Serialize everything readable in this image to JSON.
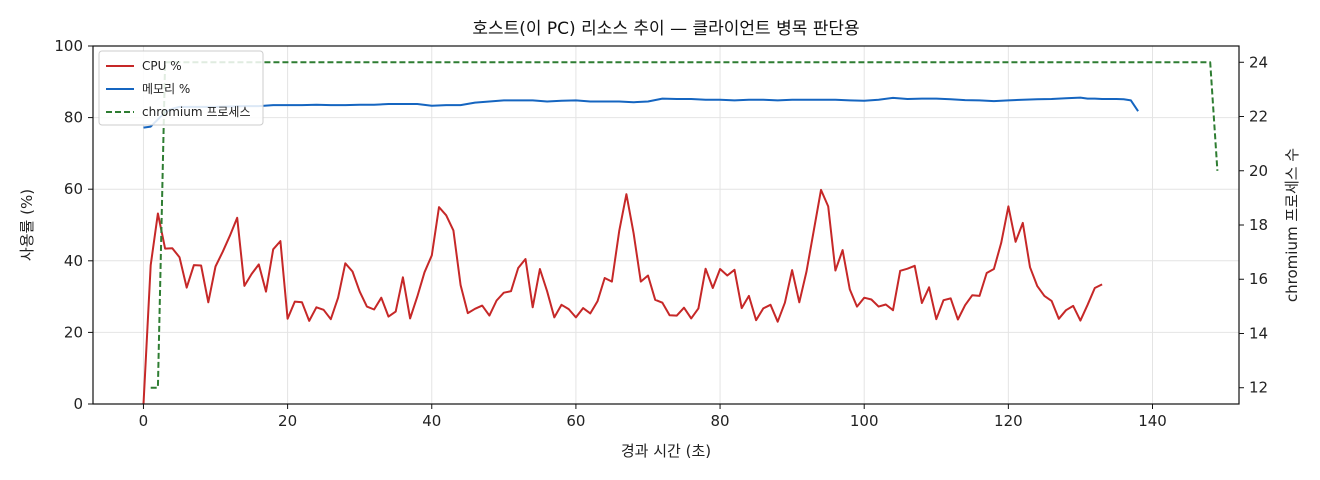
{
  "chart_data": {
    "type": "line",
    "title": "호스트(이 PC) 리소스 추이 — 클라이언트 병목 판단용",
    "xlabel": "경과 시간 (초)",
    "ylabel": "사용률 (%)",
    "y2label": "chromium 프로세스 수",
    "xlim": [
      -7,
      152
    ],
    "ylim": [
      0,
      100
    ],
    "y2lim": [
      11.4,
      24.6
    ],
    "xticks": [
      0,
      20,
      40,
      60,
      80,
      100,
      120,
      140
    ],
    "yticks": [
      0,
      20,
      40,
      60,
      80,
      100
    ],
    "y2ticks": [
      12,
      14,
      16,
      18,
      20,
      22,
      24
    ],
    "grid": true,
    "legend_position": "top-left",
    "series": [
      {
        "name": "CPU %",
        "axis": "left",
        "color": "#c62828",
        "style": "solid",
        "points": [
          [
            0,
            0
          ],
          [
            1,
            38.8
          ],
          [
            2,
            53.2
          ],
          [
            3,
            43.4
          ],
          [
            4,
            43.5
          ],
          [
            5,
            41
          ],
          [
            6,
            32.5
          ],
          [
            7,
            38.8
          ],
          [
            8,
            38.7
          ],
          [
            9,
            28.4
          ],
          [
            10,
            38.4
          ],
          [
            11,
            42.5
          ],
          [
            12,
            47
          ],
          [
            13,
            52
          ],
          [
            14,
            33
          ],
          [
            15,
            36.3
          ],
          [
            16,
            39
          ],
          [
            17,
            31.4
          ],
          [
            18,
            43.2
          ],
          [
            19,
            45.5
          ],
          [
            20,
            23.8
          ],
          [
            21,
            28.6
          ],
          [
            22,
            28.4
          ],
          [
            23,
            23.2
          ],
          [
            24,
            27
          ],
          [
            25,
            26.3
          ],
          [
            26,
            23.7
          ],
          [
            27,
            29.7
          ],
          [
            28,
            39.3
          ],
          [
            29,
            37
          ],
          [
            30,
            31.4
          ],
          [
            31,
            27.2
          ],
          [
            32,
            26.4
          ],
          [
            33,
            29.7
          ],
          [
            34,
            24.4
          ],
          [
            35,
            25.8
          ],
          [
            36,
            35.4
          ],
          [
            37,
            23.9
          ],
          [
            38,
            30
          ],
          [
            39,
            36.8
          ],
          [
            40,
            41.5
          ],
          [
            41,
            55
          ],
          [
            42,
            52.7
          ],
          [
            43,
            48.5
          ],
          [
            44,
            33.2
          ],
          [
            45,
            25.4
          ],
          [
            46,
            26.6
          ],
          [
            47,
            27.5
          ],
          [
            48,
            24.7
          ],
          [
            49,
            28.9
          ],
          [
            50,
            31.1
          ],
          [
            51,
            31.5
          ],
          [
            52,
            38
          ],
          [
            53,
            40.5
          ],
          [
            54,
            27
          ],
          [
            55,
            37.7
          ],
          [
            56,
            31.5
          ],
          [
            57,
            24.2
          ],
          [
            58,
            27.7
          ],
          [
            59,
            26.5
          ],
          [
            60,
            24.2
          ],
          [
            61,
            26.8
          ],
          [
            62,
            25.3
          ],
          [
            63,
            28.7
          ],
          [
            64,
            35.2
          ],
          [
            65,
            34.2
          ],
          [
            66,
            48.3
          ],
          [
            67,
            58.6
          ],
          [
            68,
            47.7
          ],
          [
            69,
            34.2
          ],
          [
            70,
            35.9
          ],
          [
            71,
            29.1
          ],
          [
            72,
            28.3
          ],
          [
            73,
            24.8
          ],
          [
            74,
            24.7
          ],
          [
            75,
            26.9
          ],
          [
            76,
            23.9
          ],
          [
            77,
            26.7
          ],
          [
            78,
            37.8
          ],
          [
            79,
            32.4
          ],
          [
            80,
            37.7
          ],
          [
            81,
            35.9
          ],
          [
            82,
            37.5
          ],
          [
            83,
            26.8
          ],
          [
            84,
            30.2
          ],
          [
            85,
            23.4
          ],
          [
            86,
            26.7
          ],
          [
            87,
            27.7
          ],
          [
            88,
            23
          ],
          [
            89,
            28.3
          ],
          [
            90,
            37.4
          ],
          [
            91,
            28.4
          ],
          [
            92,
            37
          ],
          [
            93,
            48.5
          ],
          [
            94,
            59.8
          ],
          [
            95,
            55.2
          ],
          [
            96,
            37.3
          ],
          [
            97,
            43
          ],
          [
            98,
            32
          ],
          [
            99,
            27.2
          ],
          [
            100,
            29.7
          ],
          [
            101,
            29.2
          ],
          [
            102,
            27.2
          ],
          [
            103,
            27.8
          ],
          [
            104,
            26.2
          ],
          [
            105,
            37.2
          ],
          [
            106,
            37.8
          ],
          [
            107,
            38.6
          ],
          [
            108,
            28.2
          ],
          [
            109,
            32.6
          ],
          [
            110,
            23.7
          ],
          [
            111,
            29
          ],
          [
            112,
            29.5
          ],
          [
            113,
            23.6
          ],
          [
            114,
            27.6
          ],
          [
            115,
            30.4
          ],
          [
            116,
            30.2
          ],
          [
            117,
            36.6
          ],
          [
            118,
            37.7
          ],
          [
            119,
            45
          ],
          [
            120,
            55.2
          ],
          [
            121,
            45.3
          ],
          [
            122,
            50.6
          ],
          [
            123,
            38.2
          ],
          [
            124,
            33
          ],
          [
            125,
            30.2
          ],
          [
            126,
            28.8
          ],
          [
            127,
            23.8
          ],
          [
            128,
            26.2
          ],
          [
            129,
            27.4
          ],
          [
            130,
            23.3
          ],
          [
            131,
            27.7
          ],
          [
            132,
            32.4
          ],
          [
            133,
            33.4
          ]
        ]
      },
      {
        "name": "메모리 %",
        "axis": "left",
        "color": "#1565c0",
        "style": "solid",
        "points": [
          [
            0,
            77.2
          ],
          [
            1,
            77.5
          ],
          [
            2,
            79.5
          ],
          [
            3,
            81.5
          ],
          [
            4,
            82.5
          ],
          [
            5,
            83
          ],
          [
            7,
            83
          ],
          [
            10,
            83
          ],
          [
            14,
            83.2
          ],
          [
            16,
            83.2
          ],
          [
            18,
            83.5
          ],
          [
            20,
            83.5
          ],
          [
            22,
            83.5
          ],
          [
            24,
            83.6
          ],
          [
            26,
            83.5
          ],
          [
            28,
            83.5
          ],
          [
            30,
            83.6
          ],
          [
            32,
            83.6
          ],
          [
            34,
            83.8
          ],
          [
            36,
            83.8
          ],
          [
            38,
            83.8
          ],
          [
            40,
            83.3
          ],
          [
            42,
            83.5
          ],
          [
            44,
            83.5
          ],
          [
            46,
            84.2
          ],
          [
            48,
            84.5
          ],
          [
            50,
            84.8
          ],
          [
            52,
            84.8
          ],
          [
            54,
            84.8
          ],
          [
            56,
            84.5
          ],
          [
            58,
            84.7
          ],
          [
            60,
            84.8
          ],
          [
            62,
            84.5
          ],
          [
            64,
            84.5
          ],
          [
            66,
            84.5
          ],
          [
            68,
            84.3
          ],
          [
            70,
            84.5
          ],
          [
            72,
            85.3
          ],
          [
            74,
            85.2
          ],
          [
            76,
            85.2
          ],
          [
            78,
            85
          ],
          [
            80,
            85
          ],
          [
            82,
            84.8
          ],
          [
            84,
            85
          ],
          [
            86,
            85
          ],
          [
            88,
            84.8
          ],
          [
            90,
            85
          ],
          [
            92,
            85
          ],
          [
            94,
            85
          ],
          [
            96,
            85
          ],
          [
            98,
            84.8
          ],
          [
            100,
            84.7
          ],
          [
            102,
            85
          ],
          [
            104,
            85.5
          ],
          [
            106,
            85.2
          ],
          [
            108,
            85.3
          ],
          [
            110,
            85.3
          ],
          [
            112,
            85.1
          ],
          [
            114,
            84.9
          ],
          [
            116,
            84.8
          ],
          [
            118,
            84.6
          ],
          [
            120,
            84.8
          ],
          [
            122,
            85
          ],
          [
            124,
            85.1
          ],
          [
            126,
            85.2
          ],
          [
            128,
            85.4
          ],
          [
            130,
            85.6
          ],
          [
            131,
            85.3
          ],
          [
            132,
            85.3
          ],
          [
            133,
            85.2
          ],
          [
            134,
            85.2
          ],
          [
            135,
            85.2
          ],
          [
            136,
            85.1
          ],
          [
            137,
            84.8
          ],
          [
            138,
            81.8
          ]
        ]
      },
      {
        "name": "chromium 프로세스",
        "axis": "right",
        "color": "#2e7d32",
        "style": "dashed",
        "points": [
          [
            1,
            12
          ],
          [
            2,
            12
          ],
          [
            3,
            24
          ],
          [
            148,
            24
          ],
          [
            149,
            20
          ]
        ]
      }
    ]
  }
}
